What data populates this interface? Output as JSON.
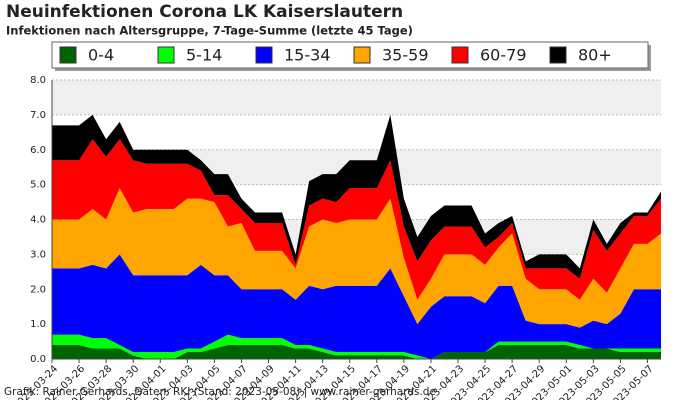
{
  "chart_data": {
    "type": "stacked_area",
    "title": "Neuinfektionen Corona LK Kaiserslautern",
    "subtitle": "Infektionen nach Altersgruppe, 7-Tage-Summe (letzte 45 Tage)",
    "footer": "Grafik: Rainer Gerhards, Daten: RKI (Stand: 2023-05-08) | www.rainer-gerhards.de",
    "categories": [
      "2023-03-24",
      null,
      "2023-03-26",
      null,
      "2023-03-28",
      null,
      "2023-03-30",
      null,
      "2023-04-01",
      null,
      "2023-04-03",
      null,
      "2023-04-05",
      null,
      "2023-04-07",
      null,
      "2023-04-09",
      null,
      "2023-04-11",
      null,
      "2023-04-13",
      null,
      "2023-04-15",
      null,
      "2023-04-17",
      null,
      "2023-04-19",
      null,
      "2023-04-21",
      null,
      "2023-04-23",
      null,
      "2023-04-25",
      null,
      "2023-04-27",
      null,
      "2023-04-29",
      null,
      "2023-05-01",
      null,
      "2023-05-03",
      null,
      "2023-05-05",
      null,
      "2023-05-07",
      null
    ],
    "ylim": [
      0,
      8
    ],
    "yticks": [
      {
        "value": 0,
        "label": "0.0"
      },
      {
        "value": 1,
        "label": "1.0"
      },
      {
        "value": 2,
        "label": "2.0"
      },
      {
        "value": 3,
        "label": "3.0"
      },
      {
        "value": 4,
        "label": "4.0"
      },
      {
        "value": 5,
        "label": "5.0"
      },
      {
        "value": 6,
        "label": "6.0"
      },
      {
        "value": 7,
        "label": "7.0"
      },
      {
        "value": 8,
        "label": "8.0"
      }
    ],
    "grid": true,
    "series": [
      {
        "name": "0-4",
        "color": "#006400",
        "values": [
          0.4,
          0.4,
          0.4,
          0.3,
          0.3,
          0.3,
          0.1,
          0,
          0,
          0,
          0.2,
          0.2,
          0.3,
          0.4,
          0.4,
          0.4,
          0.4,
          0.4,
          0.3,
          0.3,
          0.2,
          0.1,
          0.1,
          0.1,
          0.1,
          0.1,
          0.1,
          0,
          0,
          0.2,
          0.2,
          0.2,
          0.2,
          0.4,
          0.4,
          0.4,
          0.4,
          0.4,
          0.4,
          0.3,
          0.3,
          0.3,
          0.2,
          0.2,
          0.2,
          0.2
        ]
      },
      {
        "name": "5-14",
        "color": "#00ff00",
        "values": [
          0.3,
          0.3,
          0.3,
          0.3,
          0.3,
          0.1,
          0.1,
          0.2,
          0.2,
          0.2,
          0.1,
          0.1,
          0.2,
          0.3,
          0.2,
          0.2,
          0.2,
          0.2,
          0.1,
          0.1,
          0.1,
          0.1,
          0.1,
          0.1,
          0.1,
          0.1,
          0.1,
          0.1,
          0,
          0,
          0,
          0,
          0,
          0.1,
          0.1,
          0.1,
          0.1,
          0.1,
          0.1,
          0.1,
          0,
          0,
          0.1,
          0.1,
          0.1,
          0.1
        ]
      },
      {
        "name": "15-34",
        "color": "#0000ff",
        "values": [
          1.9,
          1.9,
          1.9,
          2.1,
          2.0,
          2.6,
          2.2,
          2.2,
          2.2,
          2.2,
          2.1,
          2.4,
          1.9,
          1.7,
          1.4,
          1.4,
          1.4,
          1.4,
          1.3,
          1.7,
          1.7,
          1.9,
          1.9,
          1.9,
          1.9,
          2.4,
          1.6,
          0.9,
          1.5,
          1.6,
          1.6,
          1.6,
          1.4,
          1.6,
          1.6,
          0.6,
          0.5,
          0.5,
          0.5,
          0.5,
          0.8,
          0.7,
          1.0,
          1.7,
          1.7,
          1.7
        ]
      },
      {
        "name": "35-59",
        "color": "#ffa500",
        "values": [
          1.4,
          1.4,
          1.4,
          1.6,
          1.4,
          1.9,
          1.8,
          1.9,
          1.9,
          1.9,
          2.2,
          1.9,
          2.1,
          1.4,
          1.9,
          1.1,
          1.1,
          1.1,
          0.9,
          1.7,
          2.0,
          1.8,
          1.9,
          1.9,
          1.9,
          2.0,
          1.1,
          0.7,
          0.8,
          1.2,
          1.2,
          1.2,
          1.1,
          1.1,
          1.5,
          1.2,
          1.0,
          1.0,
          1.0,
          0.8,
          1.2,
          0.9,
          1.3,
          1.3,
          1.3,
          1.6
        ]
      },
      {
        "name": "60-79",
        "color": "#ff0000",
        "values": [
          1.7,
          1.7,
          1.7,
          2.0,
          1.8,
          1.4,
          1.5,
          1.3,
          1.3,
          1.3,
          1.0,
          0.8,
          0.2,
          0.9,
          0.4,
          0.8,
          0.8,
          0.8,
          0.1,
          0.6,
          0.6,
          0.6,
          0.9,
          0.9,
          0.9,
          1.1,
          0.9,
          1.1,
          1.1,
          0.8,
          0.8,
          0.8,
          0.5,
          0.3,
          0.3,
          0.3,
          0.6,
          0.6,
          0.6,
          0.6,
          1.4,
          1.2,
          1.0,
          0.8,
          0.8,
          1.0
        ]
      },
      {
        "name": "80+",
        "color": "#000000",
        "values": [
          1.0,
          1.0,
          1.0,
          0.7,
          0.5,
          0.5,
          0.3,
          0.4,
          0.4,
          0.4,
          0.4,
          0.3,
          0.6,
          0.6,
          0.3,
          0.3,
          0.3,
          0.3,
          0.3,
          0.7,
          0.7,
          0.8,
          0.8,
          0.8,
          0.8,
          1.3,
          0.8,
          0.7,
          0.7,
          0.6,
          0.6,
          0.6,
          0.4,
          0.4,
          0.2,
          0.2,
          0.4,
          0.4,
          0.4,
          0.3,
          0.3,
          0.2,
          0.3,
          0.1,
          0.1,
          0.2
        ]
      }
    ]
  }
}
